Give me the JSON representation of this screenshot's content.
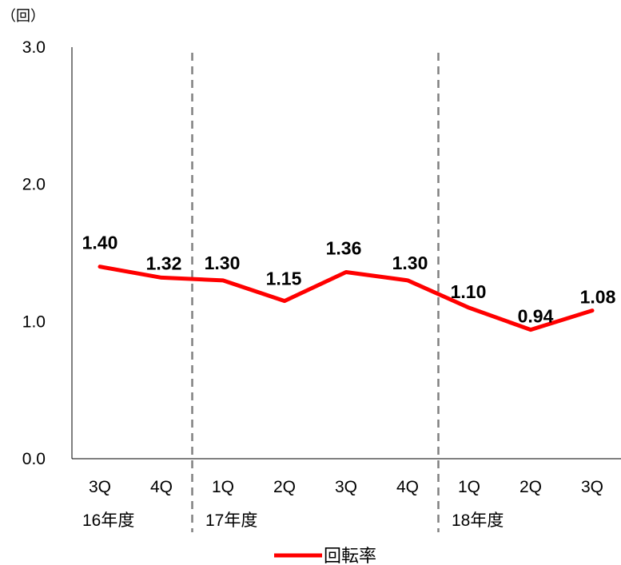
{
  "chart_data": {
    "type": "line",
    "unit_label": "（回）",
    "categories": [
      "3Q",
      "4Q",
      "1Q",
      "2Q",
      "3Q",
      "4Q",
      "1Q",
      "2Q",
      "3Q"
    ],
    "year_groups": [
      {
        "label": "16年度",
        "start": 0,
        "end": 1
      },
      {
        "label": "17年度",
        "start": 2,
        "end": 5
      },
      {
        "label": "18年度",
        "start": 6,
        "end": 8
      }
    ],
    "series": [
      {
        "name": "回転率",
        "color": "#ff0000",
        "values": [
          1.4,
          1.32,
          1.3,
          1.15,
          1.36,
          1.3,
          1.1,
          0.94,
          1.08
        ],
        "labels": [
          "1.40",
          "1.32",
          "1.30",
          "1.15",
          "1.36",
          "1.30",
          "1.10",
          "0.94",
          "1.08"
        ]
      }
    ],
    "ylim": [
      0,
      3
    ],
    "yticks": [
      "0.0",
      "1.0",
      "2.0",
      "3.0"
    ],
    "ytick_values": [
      0,
      1,
      2,
      3
    ],
    "grid": false,
    "separators": "dashed vertical lines between fiscal years",
    "legend_position": "bottom-center"
  }
}
